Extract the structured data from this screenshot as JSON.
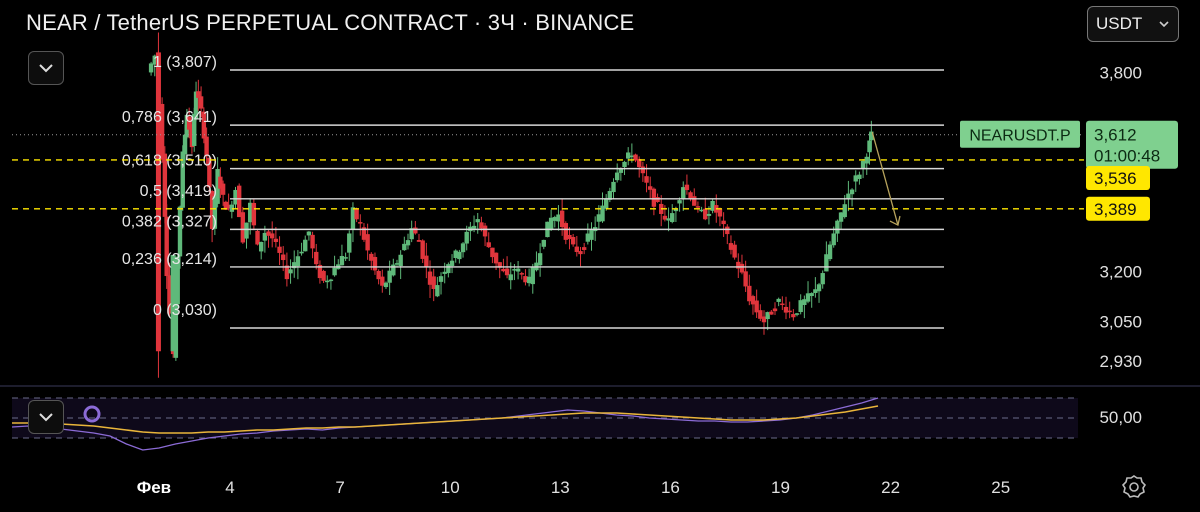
{
  "header": {
    "title": "NEAR / TetherUS PERPETUAL CONTRACT · 3Ч · BINANCE",
    "currency": "USDT"
  },
  "colors": {
    "up": "#5fb97a",
    "down": "#e0353c",
    "fib_line": "#d7d7d7",
    "ticker_badge": "#7fd08f",
    "yellow_badge": "#ffe700",
    "rsi": "#8b6bd6",
    "rsi_ma": "#e9b53a",
    "arrow": "#b7a35c"
  },
  "chart_data": {
    "type": "candlestick",
    "y_axis": {
      "min": 2.88,
      "max": 3.92,
      "ticks": [
        "3,800",
        "3,200",
        "3,050",
        "2,930"
      ]
    },
    "x_axis": {
      "ticks": [
        "Фев",
        "4",
        "7",
        "10",
        "13",
        "16",
        "19",
        "22",
        "25"
      ]
    },
    "fib_levels": [
      {
        "label": "1 (3,807)",
        "value": 3.807
      },
      {
        "label": "0,786 (3,641)",
        "value": 3.641
      },
      {
        "label": "0,618 (3,510)",
        "value": 3.51
      },
      {
        "label": "0,5 (3,419)",
        "value": 3.419
      },
      {
        "label": "0,382 (3,327)",
        "value": 3.327
      },
      {
        "label": "0,236 (3,214)",
        "value": 3.214
      },
      {
        "label": "0 (3,030)",
        "value": 3.03
      }
    ],
    "price_badges": [
      {
        "kind": "ticker",
        "symbol": "NEARUSDT.P",
        "price": "3,612",
        "countdown": "01:00:48",
        "value": 3.612
      },
      {
        "kind": "level",
        "price": "3,536",
        "value": 3.536
      },
      {
        "kind": "level",
        "price": "3,389",
        "value": 3.389
      }
    ],
    "dashed_levels": [
      3.536,
      3.389
    ],
    "dotted_level": 3.612,
    "path": [
      [
        1.8,
        3.8
      ],
      [
        2.0,
        3.85
      ],
      [
        2.2,
        3.55
      ],
      [
        2.3,
        3.2
      ],
      [
        2.5,
        2.95
      ],
      [
        2.6,
        3.25
      ],
      [
        2.75,
        3.55
      ],
      [
        2.85,
        3.68
      ],
      [
        3.0,
        3.58
      ],
      [
        3.1,
        3.75
      ],
      [
        3.25,
        3.68
      ],
      [
        3.4,
        3.55
      ],
      [
        3.55,
        3.33
      ],
      [
        3.7,
        3.5
      ],
      [
        3.85,
        3.42
      ],
      [
        4.0,
        3.38
      ],
      [
        4.2,
        3.45
      ],
      [
        4.4,
        3.3
      ],
      [
        4.6,
        3.4
      ],
      [
        4.8,
        3.27
      ],
      [
        5.0,
        3.32
      ],
      [
        5.2,
        3.3
      ],
      [
        5.4,
        3.25
      ],
      [
        5.6,
        3.19
      ],
      [
        5.8,
        3.23
      ],
      [
        6.0,
        3.27
      ],
      [
        6.2,
        3.32
      ],
      [
        6.4,
        3.21
      ],
      [
        6.6,
        3.17
      ],
      [
        6.8,
        3.19
      ],
      [
        7.0,
        3.23
      ],
      [
        7.2,
        3.25
      ],
      [
        7.4,
        3.38
      ],
      [
        7.6,
        3.34
      ],
      [
        7.8,
        3.26
      ],
      [
        8.0,
        3.2
      ],
      [
        8.2,
        3.15
      ],
      [
        8.4,
        3.19
      ],
      [
        8.6,
        3.23
      ],
      [
        8.8,
        3.28
      ],
      [
        9.0,
        3.33
      ],
      [
        9.2,
        3.29
      ],
      [
        9.4,
        3.21
      ],
      [
        9.6,
        3.14
      ],
      [
        9.8,
        3.19
      ],
      [
        10.0,
        3.23
      ],
      [
        10.2,
        3.25
      ],
      [
        10.4,
        3.29
      ],
      [
        10.6,
        3.33
      ],
      [
        10.8,
        3.36
      ],
      [
        11.0,
        3.3
      ],
      [
        11.2,
        3.25
      ],
      [
        11.4,
        3.21
      ],
      [
        11.6,
        3.18
      ],
      [
        11.8,
        3.21
      ],
      [
        12.0,
        3.19
      ],
      [
        12.2,
        3.17
      ],
      [
        12.4,
        3.23
      ],
      [
        12.6,
        3.31
      ],
      [
        12.8,
        3.36
      ],
      [
        13.0,
        3.37
      ],
      [
        13.2,
        3.31
      ],
      [
        13.4,
        3.27
      ],
      [
        13.6,
        3.26
      ],
      [
        13.8,
        3.3
      ],
      [
        14.0,
        3.34
      ],
      [
        14.2,
        3.39
      ],
      [
        14.4,
        3.45
      ],
      [
        14.6,
        3.51
      ],
      [
        14.8,
        3.53
      ],
      [
        15.0,
        3.56
      ],
      [
        15.2,
        3.51
      ],
      [
        15.4,
        3.46
      ],
      [
        15.6,
        3.41
      ],
      [
        15.8,
        3.38
      ],
      [
        16.0,
        3.35
      ],
      [
        16.2,
        3.4
      ],
      [
        16.4,
        3.46
      ],
      [
        16.6,
        3.43
      ],
      [
        16.8,
        3.38
      ],
      [
        17.0,
        3.37
      ],
      [
        17.2,
        3.4
      ],
      [
        17.4,
        3.36
      ],
      [
        17.6,
        3.3
      ],
      [
        17.8,
        3.24
      ],
      [
        18.0,
        3.19
      ],
      [
        18.2,
        3.12
      ],
      [
        18.4,
        3.08
      ],
      [
        18.6,
        3.05
      ],
      [
        18.8,
        3.08
      ],
      [
        19.0,
        3.11
      ],
      [
        19.2,
        3.09
      ],
      [
        19.4,
        3.07
      ],
      [
        19.6,
        3.1
      ],
      [
        19.8,
        3.12
      ],
      [
        20.0,
        3.14
      ],
      [
        20.2,
        3.2
      ],
      [
        20.4,
        3.28
      ],
      [
        20.6,
        3.34
      ],
      [
        20.8,
        3.41
      ],
      [
        21.0,
        3.46
      ],
      [
        21.2,
        3.5
      ],
      [
        21.4,
        3.56
      ],
      [
        21.5,
        3.61
      ]
    ],
    "projection": {
      "from": [
        21.5,
        3.62
      ],
      "to": [
        22.2,
        3.34
      ]
    },
    "rsi": {
      "axis_label": "50,00",
      "series": [
        41,
        42,
        41,
        39,
        37,
        35,
        32,
        24,
        18,
        20,
        24,
        27,
        30,
        32,
        34,
        35,
        37,
        38,
        39,
        38,
        40,
        41,
        42,
        43,
        44,
        45,
        46,
        47,
        48,
        49,
        50,
        52,
        54,
        56,
        58,
        57,
        55,
        53,
        52,
        50,
        49,
        48,
        47,
        47,
        46,
        46,
        47,
        48,
        50,
        53,
        57,
        61,
        65,
        70
      ],
      "ma": [
        45,
        45,
        44,
        44,
        43,
        42,
        40,
        38,
        36,
        35,
        35,
        35,
        36,
        36,
        37,
        38,
        38,
        39,
        40,
        40,
        41,
        41,
        42,
        43,
        44,
        45,
        46,
        47,
        48,
        49,
        50,
        51,
        52,
        53,
        54,
        55,
        55,
        55,
        54,
        53,
        52,
        51,
        50,
        49,
        48,
        48,
        48,
        49,
        50,
        52,
        54,
        56,
        59,
        62
      ]
    }
  }
}
